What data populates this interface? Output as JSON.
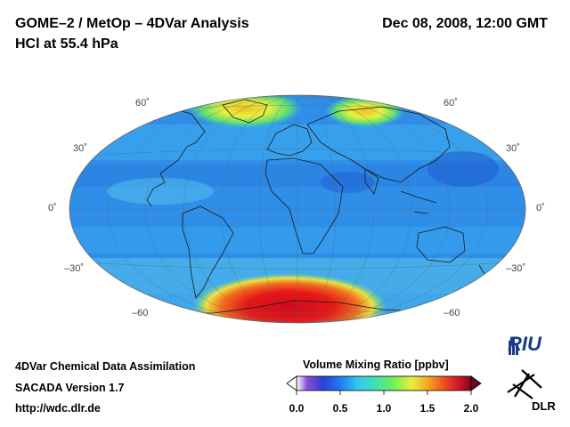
{
  "header": {
    "title_line1": "GOME–2 / MetOp – 4DVar Analysis",
    "title_line2": "HCl at 55.4 hPa",
    "datetime": "Dec 08, 2008, 12:00 GMT"
  },
  "latitude_labels": {
    "left": [
      "60˚",
      "30˚",
      "0˚",
      "–30˚",
      "–60"
    ],
    "right": [
      "60˚",
      "30˚",
      "0˚",
      "–30˚",
      "–60"
    ]
  },
  "footer": {
    "line1": "4DVar Chemical Data Assimilation",
    "line2": "SACADA Version 1.7",
    "line3": "http://wdc.dlr.de"
  },
  "colorbar": {
    "title": "Volume Mixing Ratio [ppbv]",
    "ticks": [
      "0.0",
      "0.5",
      "1.0",
      "1.5",
      "2.0"
    ],
    "min": 0.0,
    "max": 2.0,
    "colors": [
      "#ffffff",
      "#8a4fd6",
      "#2b3fd8",
      "#1f7bf0",
      "#34c8ef",
      "#3fe0b0",
      "#6cf05a",
      "#e8f040",
      "#f5a020",
      "#ef4020",
      "#c8102a",
      "#7a0a1e"
    ]
  },
  "logos": {
    "riu": "RIU",
    "dlr": "DLR"
  }
}
